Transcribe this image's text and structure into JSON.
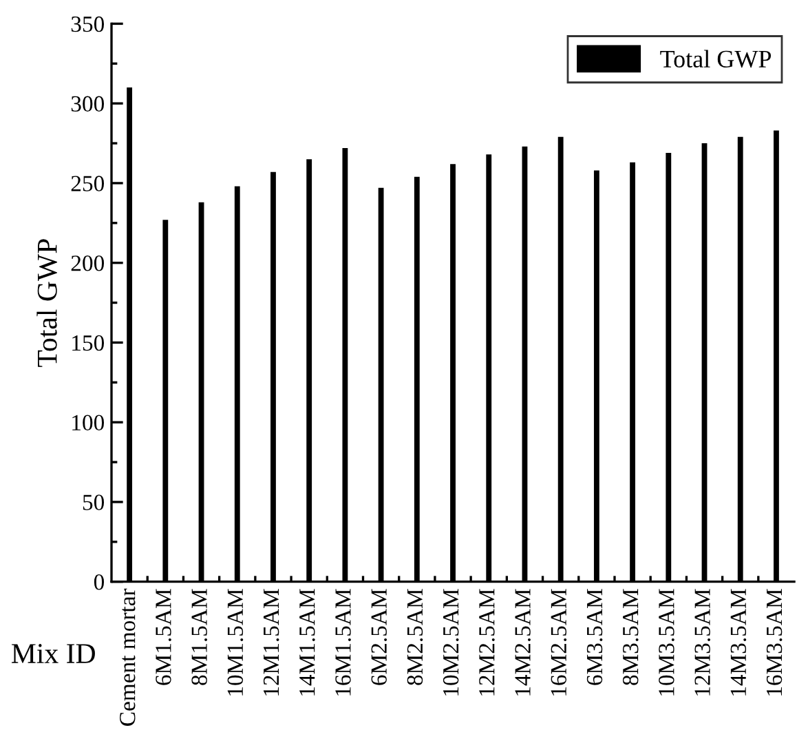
{
  "chart_data": {
    "type": "bar",
    "xlabel": "Mix ID",
    "ylabel": "Total GWP",
    "categories": [
      "Cement mortar",
      "6M1.5AM",
      "8M1.5AM",
      "10M1.5AM",
      "12M1.5AM",
      "14M1.5AM",
      "16M1.5AM",
      "6M2.5AM",
      "8M2.5AM",
      "10M2.5AM",
      "12M2.5AM",
      "14M2.5AM",
      "16M2.5AM",
      "6M3.5AM",
      "8M3.5AM",
      "10M3.5AM",
      "12M3.5AM",
      "14M3.5AM",
      "16M3.5AM"
    ],
    "series": [
      {
        "name": "Total GWP",
        "color": "#000000",
        "values": [
          310,
          227,
          238,
          248,
          257,
          265,
          272,
          247,
          254,
          262,
          268,
          273,
          279,
          258,
          263,
          269,
          275,
          279,
          283
        ]
      }
    ],
    "ylim": [
      0,
      350
    ],
    "yticks": [
      0,
      50,
      100,
      150,
      200,
      250,
      300,
      350
    ],
    "grid": false,
    "legend": "top right"
  }
}
